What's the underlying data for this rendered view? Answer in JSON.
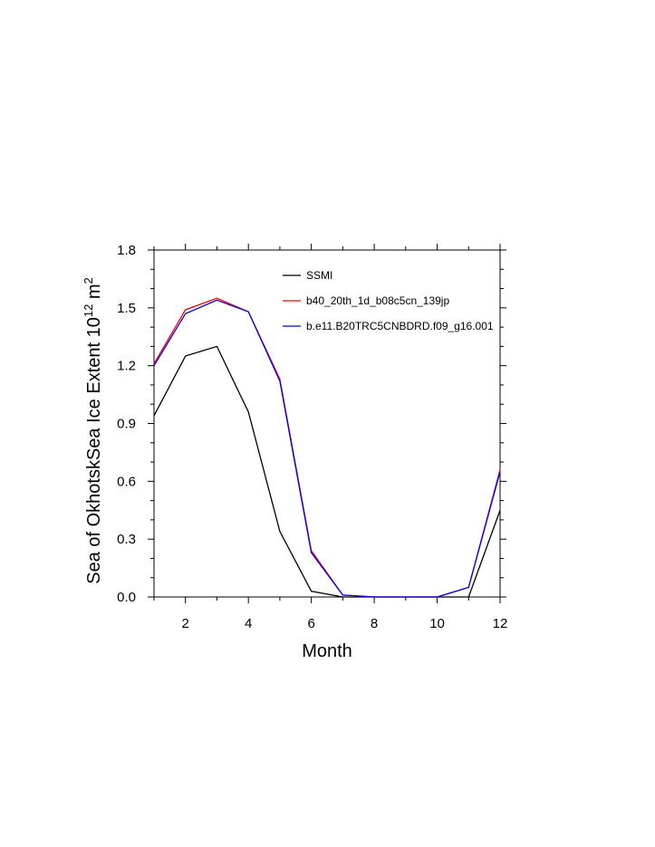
{
  "chart_data": {
    "type": "line",
    "xlabel": "Month",
    "ylabel_main": "Sea of OkhotskSea Ice Extent 10",
    "ylabel_sup": "12",
    "ylabel_unit": " m",
    "ylabel_unit_sup": "2",
    "xlim": [
      1,
      12
    ],
    "ylim": [
      0.0,
      1.8
    ],
    "xticks": [
      2,
      4,
      6,
      8,
      10,
      12
    ],
    "xtick_labels": [
      "2",
      "4",
      "6",
      "8",
      "10",
      "12"
    ],
    "yticks": [
      0.0,
      0.3,
      0.6,
      0.9,
      1.2,
      1.5,
      1.8
    ],
    "ytick_labels": [
      "0.0",
      "0.3",
      "0.6",
      "0.9",
      "1.2",
      "1.5",
      "1.8"
    ],
    "legend_position": "top-right",
    "grid": false,
    "x": [
      1,
      2,
      3,
      4,
      5,
      6,
      7,
      8,
      9,
      10,
      11,
      12
    ],
    "series": [
      {
        "name": "SSMI",
        "color": "#000000",
        "values": [
          0.94,
          1.25,
          1.3,
          0.96,
          0.34,
          0.03,
          0.0,
          0.0,
          0.0,
          0.0,
          0.0,
          0.45
        ]
      },
      {
        "name": "b40_20th_1d_b08c5cn_139jp",
        "color": "#ff0000",
        "values": [
          1.21,
          1.49,
          1.55,
          1.48,
          1.13,
          0.24,
          0.01,
          0.0,
          0.0,
          0.0,
          0.05,
          0.66
        ]
      },
      {
        "name": "b.e11.B20TRC5CNBDRD.f09_g16.001",
        "color": "#0000ff",
        "values": [
          1.2,
          1.47,
          1.54,
          1.48,
          1.12,
          0.23,
          0.01,
          0.0,
          0.0,
          0.0,
          0.05,
          0.65
        ]
      }
    ]
  }
}
